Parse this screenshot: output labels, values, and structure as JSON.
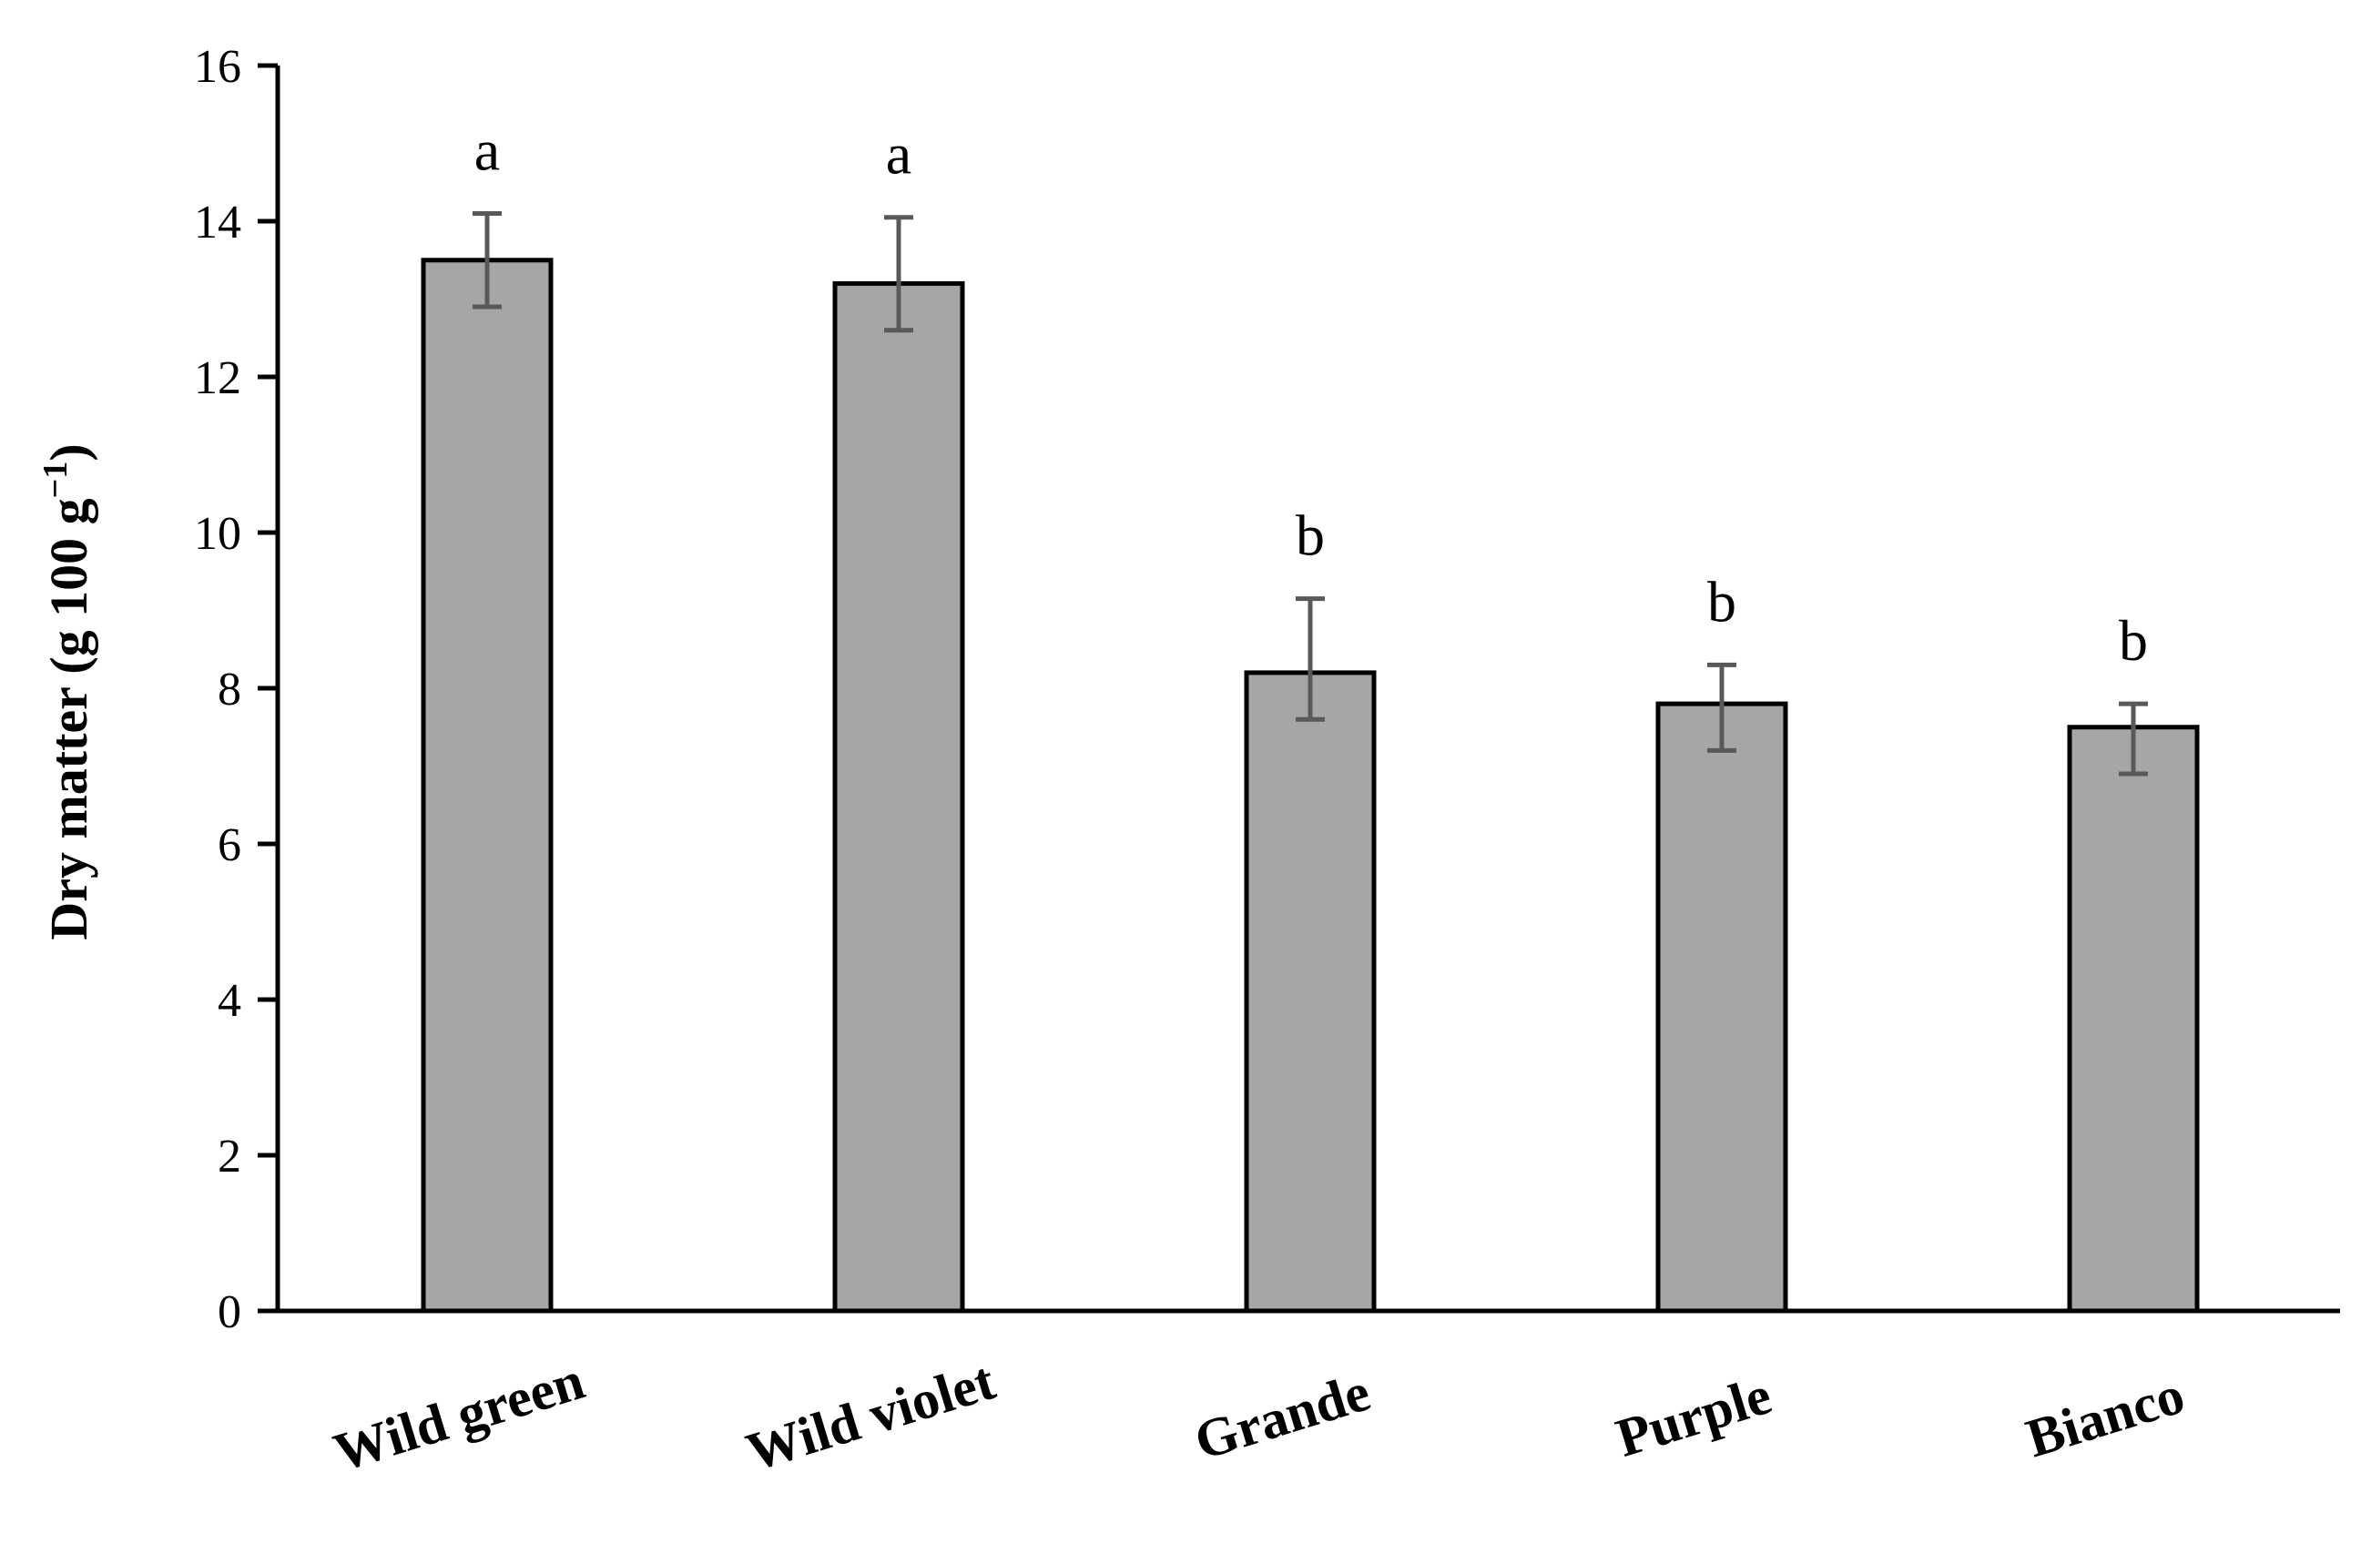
{
  "chart_data": {
    "type": "bar",
    "title": "",
    "xlabel": "",
    "ylabel": {
      "prefix": "Dry matter (g 100 g",
      "superscript": "−1",
      "suffix": ")"
    },
    "categories": [
      "Wild green",
      "Wild violet",
      "Grande",
      "Purple",
      "Bianco"
    ],
    "values": [
      13.5,
      13.2,
      8.2,
      7.8,
      7.5
    ],
    "error_low": [
      12.9,
      12.6,
      7.6,
      7.2,
      6.9
    ],
    "error_high": [
      14.1,
      14.05,
      9.15,
      8.3,
      7.8
    ],
    "significance_letters": [
      "a",
      "a",
      "b",
      "b",
      "b"
    ],
    "ylim": [
      0,
      16
    ],
    "yticks": [
      0,
      2,
      4,
      6,
      8,
      10,
      12,
      14,
      16
    ],
    "grid": false,
    "legend": "none",
    "colors": {
      "bar_fill": "#a6a6a6",
      "bar_stroke": "#000000",
      "error_bar": "#595959",
      "axis": "#000000"
    }
  }
}
